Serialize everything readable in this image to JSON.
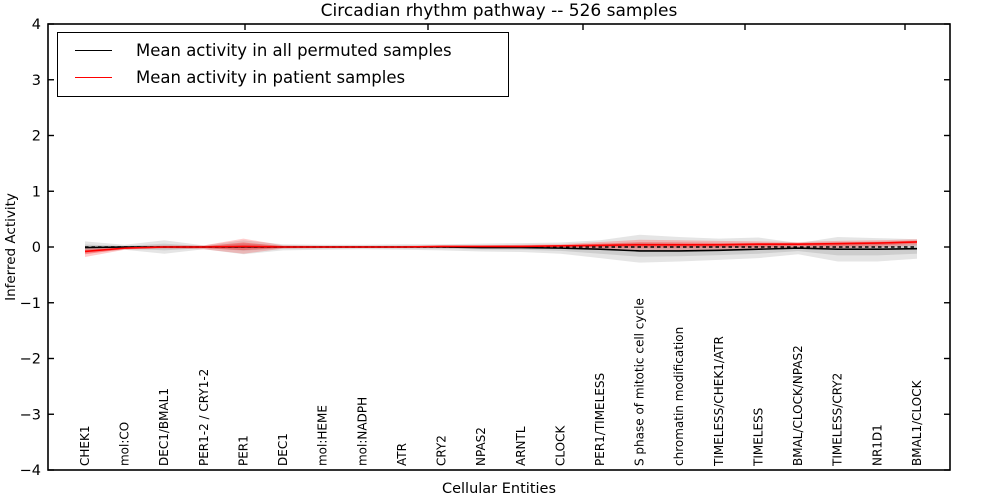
{
  "chart_data": {
    "type": "line",
    "title": "Circadian rhythm pathway -- 526 samples",
    "xlabel": "Cellular Entities",
    "ylabel": "Inferred Activity",
    "ylim": [
      -4,
      4
    ],
    "ytick_labels": [
      "4",
      "3",
      "2",
      "1",
      "0",
      "−1",
      "−2",
      "−3",
      "−4"
    ],
    "grid": false,
    "legend_position": "upper left",
    "reference_line": {
      "y": 0,
      "style": "dashed",
      "color": "#000000"
    },
    "categories": [
      "CHEK1",
      "mol:CO",
      "DEC1/BMAL1",
      "PER1-2 / CRY1-2",
      "PER1",
      "DEC1",
      "mol:HEME",
      "mol:NADPH",
      "ATR",
      "CRY2",
      "NPAS2",
      "ARNTL",
      "CLOCK",
      "PER1/TIMELESS",
      "S phase of mitotic cell cycle",
      "chromatin modification",
      "TIMELESS/CHEK1/ATR",
      "TIMELESS",
      "BMAL/CLOCK/NPAS2",
      "TIMELESS/CRY2",
      "NR1D1",
      "BMAL1/CLOCK"
    ],
    "series": [
      {
        "name": "Mean activity in all permuted samples",
        "color": "#000000",
        "band_color": "#000000",
        "values": [
          -0.01,
          0.0,
          0.0,
          0.0,
          0.0,
          0.0,
          0.0,
          0.0,
          0.0,
          0.0,
          -0.01,
          -0.01,
          -0.02,
          -0.04,
          -0.07,
          -0.07,
          -0.06,
          -0.04,
          -0.02,
          -0.04,
          -0.04,
          -0.03
        ],
        "band_upper": [
          0.1,
          0.04,
          0.12,
          0.03,
          0.12,
          0.05,
          0.04,
          0.04,
          0.05,
          0.05,
          0.06,
          0.07,
          0.08,
          0.12,
          0.22,
          0.18,
          0.15,
          0.17,
          0.07,
          0.18,
          0.16,
          0.14
        ],
        "band_lower": [
          -0.11,
          -0.05,
          -0.12,
          -0.04,
          -0.13,
          -0.06,
          -0.05,
          -0.04,
          -0.05,
          -0.06,
          -0.08,
          -0.09,
          -0.12,
          -0.2,
          -0.28,
          -0.26,
          -0.23,
          -0.2,
          -0.13,
          -0.26,
          -0.26,
          -0.21
        ]
      },
      {
        "name": "Mean activity in patient samples",
        "color": "#ff0000",
        "band_color": "#ff0000",
        "values": [
          -0.08,
          -0.02,
          0.0,
          0.0,
          0.01,
          0.0,
          0.0,
          0.0,
          0.0,
          0.01,
          0.01,
          0.01,
          0.02,
          0.03,
          0.04,
          0.04,
          0.04,
          0.05,
          0.05,
          0.06,
          0.07,
          0.09
        ],
        "band_upper": [
          -0.02,
          0.01,
          0.03,
          0.03,
          0.15,
          0.03,
          0.02,
          0.02,
          0.02,
          0.03,
          0.03,
          0.04,
          0.05,
          0.09,
          0.13,
          0.12,
          0.11,
          0.1,
          0.09,
          0.11,
          0.12,
          0.14
        ],
        "band_lower": [
          -0.18,
          -0.05,
          -0.03,
          -0.04,
          -0.12,
          -0.03,
          -0.02,
          -0.02,
          -0.02,
          -0.02,
          -0.02,
          -0.02,
          -0.02,
          -0.04,
          -0.06,
          -0.06,
          -0.05,
          -0.04,
          -0.02,
          -0.02,
          -0.01,
          0.03
        ]
      }
    ]
  }
}
